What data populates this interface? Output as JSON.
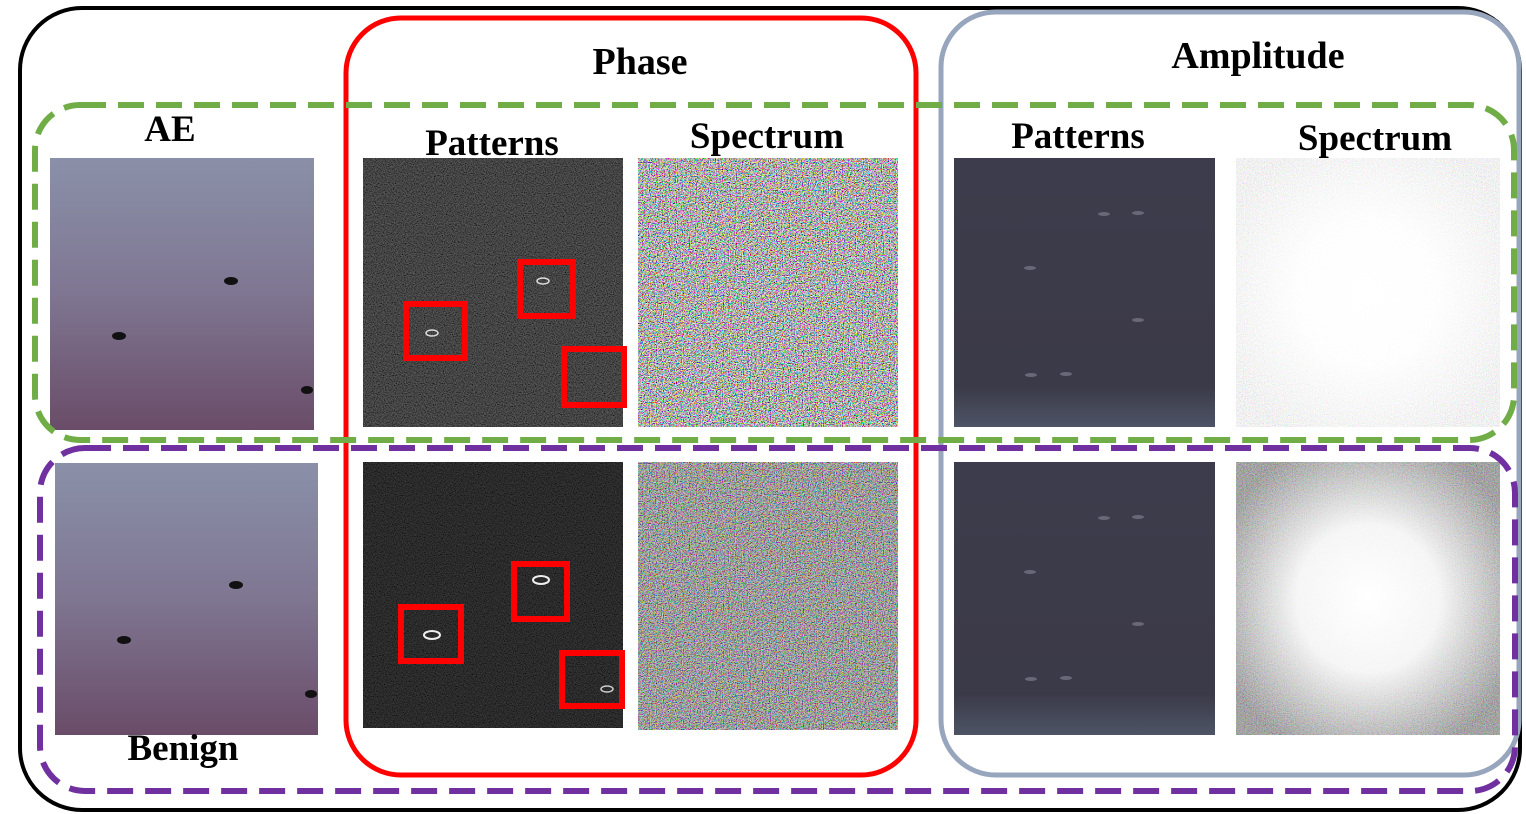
{
  "groups": [
    {
      "title": "Phase",
      "columns": [
        "Patterns",
        "Spectrum"
      ]
    },
    {
      "title": "Amplitude",
      "columns": [
        "Patterns",
        "Spectrum"
      ]
    }
  ],
  "rows": [
    "AE",
    "Benign"
  ]
}
